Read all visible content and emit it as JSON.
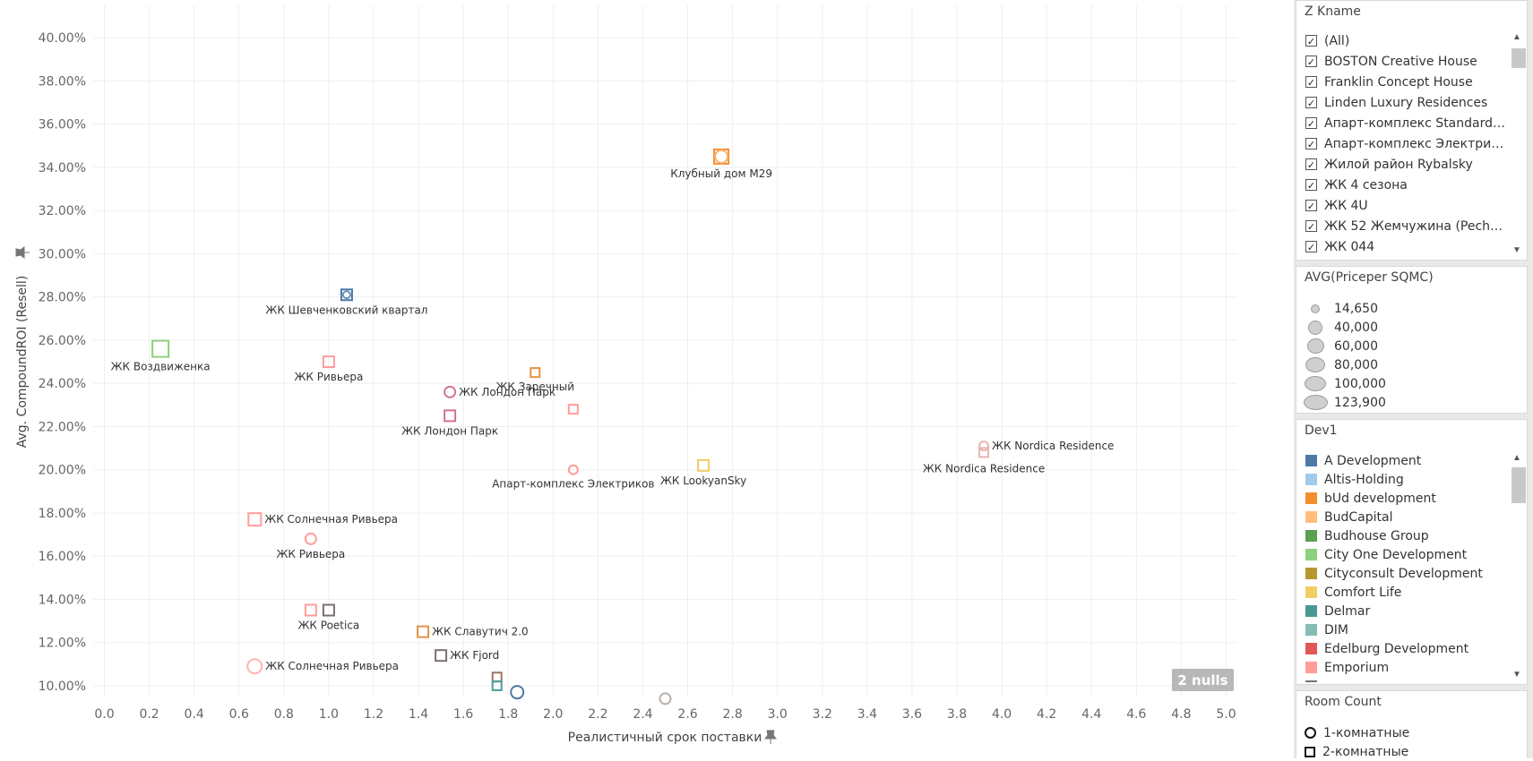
{
  "chart_data": {
    "type": "scatter",
    "xlabel": "Реалистичный срок поставки",
    "ylabel": "Avg. CompoundROI (Resell)",
    "xlim": [
      -0.05,
      5.05
    ],
    "ylim": [
      9.5,
      41.5
    ],
    "xticks": [
      "0.0",
      "0.2",
      "0.4",
      "0.6",
      "0.8",
      "1.0",
      "1.2",
      "1.4",
      "1.6",
      "1.8",
      "2.0",
      "2.2",
      "2.4",
      "2.6",
      "2.8",
      "3.0",
      "3.2",
      "3.4",
      "3.6",
      "3.8",
      "4.0",
      "4.2",
      "4.4",
      "4.6",
      "4.8",
      "5.0"
    ],
    "yticks": [
      "10.00%",
      "12.00%",
      "14.00%",
      "16.00%",
      "18.00%",
      "20.00%",
      "22.00%",
      "24.00%",
      "26.00%",
      "28.00%",
      "30.00%",
      "32.00%",
      "34.00%",
      "36.00%",
      "38.00%",
      "40.00%"
    ],
    "points": [
      {
        "x": 2.75,
        "y": 34.5,
        "shape": "square",
        "color": "#f28e2b",
        "size": 8,
        "label": "Клубный дом M29",
        "labelPos": "below"
      },
      {
        "x": 2.75,
        "y": 34.5,
        "shape": "circle",
        "color": "#f7b470",
        "size": 7,
        "label": "",
        "labelPos": "none"
      },
      {
        "x": 1.08,
        "y": 28.1,
        "shape": "square",
        "color": "#4e79a7",
        "size": 6,
        "label": "ЖК Шевченковский квартал",
        "labelPos": "below"
      },
      {
        "x": 1.08,
        "y": 28.1,
        "shape": "circle",
        "color": "#6a92bd",
        "size": 4,
        "label": "",
        "labelPos": "none"
      },
      {
        "x": 0.25,
        "y": 25.6,
        "shape": "square",
        "color": "#8cd17d",
        "size": 9,
        "label": "ЖК Воздвиженка",
        "labelPos": "below"
      },
      {
        "x": 1.0,
        "y": 25.0,
        "shape": "square",
        "color": "#ff9d9a",
        "size": 6,
        "label": "ЖК Ривьера",
        "labelPos": "below"
      },
      {
        "x": 1.92,
        "y": 24.5,
        "shape": "square",
        "color": "#e49444",
        "size": 5,
        "label": "ЖК Заречный",
        "labelPos": "below"
      },
      {
        "x": 1.54,
        "y": 23.6,
        "shape": "circle",
        "color": "#d37295",
        "size": 6,
        "label": "ЖК Лондон Парк",
        "labelPos": "right"
      },
      {
        "x": 1.54,
        "y": 22.5,
        "shape": "square",
        "color": "#d37295",
        "size": 6,
        "label": "ЖК Лондон Парк",
        "labelPos": "below"
      },
      {
        "x": 2.09,
        "y": 22.8,
        "shape": "square",
        "color": "#ff9d9a",
        "size": 5,
        "label": "",
        "labelPos": "none"
      },
      {
        "x": 2.09,
        "y": 20.0,
        "shape": "circle",
        "color": "#ff9d9a",
        "size": 5,
        "label": "Апарт-комплекс Электриков",
        "labelPos": "below"
      },
      {
        "x": 2.67,
        "y": 20.2,
        "shape": "square",
        "color": "#f1ce63",
        "size": 6,
        "label": "ЖК LookyanSky",
        "labelPos": "below"
      },
      {
        "x": 3.92,
        "y": 21.1,
        "shape": "circle",
        "color": "#e8b4b0",
        "size": 5,
        "label": "ЖК Nordica Residence",
        "labelPos": "right"
      },
      {
        "x": 3.92,
        "y": 20.8,
        "shape": "square",
        "color": "#e8b4b0",
        "size": 5,
        "label": "ЖК Nordica Residence",
        "labelPos": "belowleft"
      },
      {
        "x": 0.67,
        "y": 17.7,
        "shape": "square",
        "color": "#ff9d9a",
        "size": 7,
        "label": "ЖК Солнечная Ривьера",
        "labelPos": "right"
      },
      {
        "x": 0.92,
        "y": 16.8,
        "shape": "circle",
        "color": "#ff9d9a",
        "size": 6,
        "label": "ЖК Ривьера",
        "labelPos": "below"
      },
      {
        "x": 0.92,
        "y": 13.5,
        "shape": "square",
        "color": "#ff9d9a",
        "size": 6,
        "label": "",
        "labelPos": "none"
      },
      {
        "x": 1.0,
        "y": 13.5,
        "shape": "square",
        "color": "#79706e",
        "size": 6,
        "label": "ЖК Poetica",
        "labelPos": "below"
      },
      {
        "x": 1.42,
        "y": 12.5,
        "shape": "square",
        "color": "#e49444",
        "size": 6,
        "label": "ЖК Славутич 2.0",
        "labelPos": "right"
      },
      {
        "x": 0.67,
        "y": 10.9,
        "shape": "circle",
        "color": "#ffb3b0",
        "size": 8,
        "label": "ЖК Солнечная Ривьера",
        "labelPos": "right"
      },
      {
        "x": 1.5,
        "y": 11.4,
        "shape": "square",
        "color": "#79706e",
        "size": 6,
        "label": "ЖК Fjord",
        "labelPos": "right"
      },
      {
        "x": 1.75,
        "y": 10.4,
        "shape": "square",
        "color": "#9c755f",
        "size": 5,
        "label": "",
        "labelPos": "none"
      },
      {
        "x": 1.75,
        "y": 10.0,
        "shape": "square",
        "color": "#4e9f99",
        "size": 5,
        "label": "",
        "labelPos": "none"
      },
      {
        "x": 1.84,
        "y": 9.7,
        "shape": "circle",
        "color": "#4e79a7",
        "size": 7,
        "label": "",
        "labelPos": "none"
      },
      {
        "x": 2.5,
        "y": 9.4,
        "shape": "circle",
        "color": "#bab0ac",
        "size": 6,
        "label": "",
        "labelPos": "none"
      }
    ]
  },
  "nulls_badge": "2 nulls",
  "filter_zkname": {
    "title": "Z Kname",
    "items": [
      "(All)",
      "BOSTON Creative House",
      "Franklin Concept House",
      "Linden Luxury Residences",
      "Апарт-комплекс Standard ...",
      "Апарт-комплекс Электрик...",
      "Жилой район Rybalsky",
      "ЖК 4 сезона",
      "ЖК 4U",
      "ЖК 52 Жемчужина (Peche...",
      "ЖК 044"
    ],
    "check_mark": "✓"
  },
  "size_legend": {
    "title": "AVG(Priceper SQMC)",
    "items": [
      "14,650",
      "40,000",
      "60,000",
      "80,000",
      "100,000",
      "123,900"
    ]
  },
  "dev_legend": {
    "title": "Dev1",
    "items": [
      {
        "label": "A Development",
        "color": "#4e79a7"
      },
      {
        "label": "Altis-Holding",
        "color": "#a0cbe8"
      },
      {
        "label": "bUd development",
        "color": "#f28e2b"
      },
      {
        "label": "BudCapital",
        "color": "#ffbe7d"
      },
      {
        "label": "Budhouse Group",
        "color": "#59a14f"
      },
      {
        "label": "City One Development",
        "color": "#8cd17d"
      },
      {
        "label": "Cityconsult Development",
        "color": "#b6992d"
      },
      {
        "label": "Comfort Life",
        "color": "#f1ce63"
      },
      {
        "label": "Delmar",
        "color": "#499894"
      },
      {
        "label": "DIM",
        "color": "#86bcb6"
      },
      {
        "label": "Edelburg Development",
        "color": "#e15759"
      },
      {
        "label": "Emporium",
        "color": "#ff9d9a"
      }
    ],
    "partial_item_color": "#79706e"
  },
  "room_legend": {
    "title": "Room Count",
    "items": [
      {
        "label": "1-комнатные",
        "shape": "circle"
      },
      {
        "label": "2-комнатные",
        "shape": "square"
      }
    ]
  }
}
